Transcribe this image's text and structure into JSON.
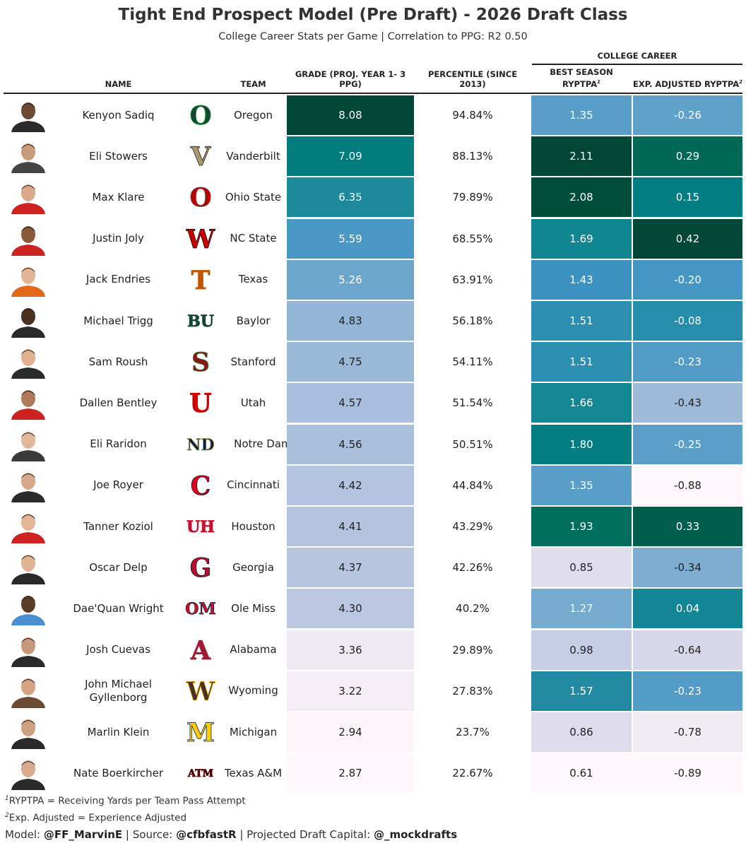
{
  "title": "Tight End Prospect Model (Pre Draft) - 2026 Draft Class",
  "subtitle": "College Career Stats per Game | Correlation to PPG: R2 0.50",
  "spanner": "COLLEGE CAREER",
  "headers": {
    "name": "NAME",
    "team": "TEAM",
    "grade": "GRADE (PROJ. YEAR 1- 3 PPG)",
    "percentile": "PERCENTILE (SINCE 2013)",
    "best": "BEST SEASON RYPTPA",
    "best_sup": "1",
    "exp": "EXP. ADJUSTED RYPTPA",
    "exp_sup": "2"
  },
  "colors": {
    "scale": [
      "#fff7fb",
      "#ece7f2",
      "#d0d1e6",
      "#a6bddb",
      "#74a9cf",
      "#3690c0",
      "#1c8a9a",
      "#02818a",
      "#016c59",
      "#014636"
    ]
  },
  "chart_data": {
    "type": "table",
    "columns": [
      "Name",
      "Team",
      "Grade (Proj. Year 1-3 PPG)",
      "Percentile (Since 2013)",
      "Best Season RYPTPA",
      "Exp. Adjusted RYPTPA"
    ],
    "rows": [
      {
        "name": "Kenyon Sadiq",
        "team": "Oregon",
        "grade": "8.08",
        "pct": "94.84%",
        "best": "1.35",
        "exp": "-0.26"
      },
      {
        "name": "Eli Stowers",
        "team": "Vanderbilt",
        "grade": "7.09",
        "pct": "88.13%",
        "best": "2.11",
        "exp": "0.29"
      },
      {
        "name": "Max Klare",
        "team": "Ohio State",
        "grade": "6.35",
        "pct": "79.89%",
        "best": "2.08",
        "exp": "0.15"
      },
      {
        "name": "Justin Joly",
        "team": "NC State",
        "grade": "5.59",
        "pct": "68.55%",
        "best": "1.69",
        "exp": "0.42"
      },
      {
        "name": "Jack Endries",
        "team": "Texas",
        "grade": "5.26",
        "pct": "63.91%",
        "best": "1.43",
        "exp": "-0.20"
      },
      {
        "name": "Michael Trigg",
        "team": "Baylor",
        "grade": "4.83",
        "pct": "56.18%",
        "best": "1.51",
        "exp": "-0.08"
      },
      {
        "name": "Sam Roush",
        "team": "Stanford",
        "grade": "4.75",
        "pct": "54.11%",
        "best": "1.51",
        "exp": "-0.23"
      },
      {
        "name": "Dallen Bentley",
        "team": "Utah",
        "grade": "4.57",
        "pct": "51.54%",
        "best": "1.66",
        "exp": "-0.43"
      },
      {
        "name": "Eli Raridon",
        "team": "Notre Dame",
        "grade": "4.56",
        "pct": "50.51%",
        "best": "1.80",
        "exp": "-0.25"
      },
      {
        "name": "Joe Royer",
        "team": "Cincinnati",
        "grade": "4.42",
        "pct": "44.84%",
        "best": "1.35",
        "exp": "-0.88"
      },
      {
        "name": "Tanner Koziol",
        "team": "Houston",
        "grade": "4.41",
        "pct": "43.29%",
        "best": "1.93",
        "exp": "0.33"
      },
      {
        "name": "Oscar Delp",
        "team": "Georgia",
        "grade": "4.37",
        "pct": "42.26%",
        "best": "0.85",
        "exp": "-0.34"
      },
      {
        "name": "Dae'Quan Wright",
        "team": "Ole Miss",
        "grade": "4.30",
        "pct": "40.2%",
        "best": "1.27",
        "exp": "0.04"
      },
      {
        "name": "Josh Cuevas",
        "team": "Alabama",
        "grade": "3.36",
        "pct": "29.89%",
        "best": "0.98",
        "exp": "-0.64"
      },
      {
        "name": "John Michael Gyllenborg",
        "team": "Wyoming",
        "grade": "3.22",
        "pct": "27.83%",
        "best": "1.57",
        "exp": "-0.23"
      },
      {
        "name": "Marlin Klein",
        "team": "Michigan",
        "grade": "2.94",
        "pct": "23.7%",
        "best": "0.86",
        "exp": "-0.78"
      },
      {
        "name": "Nate Boerkircher",
        "team": "Texas A&M",
        "grade": "2.87",
        "pct": "22.67%",
        "best": "0.61",
        "exp": "-0.89"
      }
    ]
  },
  "footnotes": [
    {
      "sup": "1",
      "text": "RYPTPA = Receiving Yards per Team Pass Attempt"
    },
    {
      "sup": "2",
      "text": "Exp. Adjusted = Experience Adjusted"
    }
  ],
  "credits": {
    "model_label": "Model: ",
    "model_handle": "@FF_MarvinE",
    "source_label": " | Source: ",
    "source_handle": "@cfbfastR",
    "capital_label": " | Projected Draft Capital: ",
    "capital_handle": "@_mockdrafts"
  },
  "logos": {
    "Oregon": {
      "icon": "oregon-o-logo",
      "glyph": "O",
      "color": "#154733",
      "accent": "#2dae46"
    },
    "Vanderbilt": {
      "icon": "vanderbilt-v-logo",
      "glyph": "V",
      "color": "#a8996e",
      "accent": "#1c1c1c"
    },
    "Ohio State": {
      "icon": "ohio-state-logo",
      "glyph": "O",
      "color": "#bb0000",
      "accent": "#666666"
    },
    "NC State": {
      "icon": "nc-state-wolf-logo",
      "glyph": "W",
      "color": "#cc0000",
      "accent": "#111111"
    },
    "Texas": {
      "icon": "texas-longhorn-logo",
      "glyph": "T",
      "color": "#bf5700",
      "accent": "#bf5700"
    },
    "Baylor": {
      "icon": "baylor-bu-logo",
      "glyph": "BU",
      "color": "#154734",
      "accent": "#154734"
    },
    "Stanford": {
      "icon": "stanford-s-logo",
      "glyph": "S",
      "color": "#8c1515",
      "accent": "#2e7d32"
    },
    "Utah": {
      "icon": "utah-u-logo",
      "glyph": "U",
      "color": "#cc0000",
      "accent": "#cc0000"
    },
    "Notre Dame": {
      "icon": "notre-dame-nd-logo",
      "glyph": "ND",
      "color": "#0c2340",
      "accent": "#ae9142"
    },
    "Cincinnati": {
      "icon": "cincinnati-c-logo",
      "glyph": "C",
      "color": "#e00122",
      "accent": "#111111"
    },
    "Houston": {
      "icon": "houston-uh-logo",
      "glyph": "UH",
      "color": "#c8102e",
      "accent": "#c8102e"
    },
    "Georgia": {
      "icon": "georgia-g-logo",
      "glyph": "G",
      "color": "#ba0c2f",
      "accent": "#111111"
    },
    "Ole Miss": {
      "icon": "ole-miss-script-logo",
      "glyph": "OM",
      "color": "#ce1126",
      "accent": "#14213d"
    },
    "Alabama": {
      "icon": "alabama-a-logo",
      "glyph": "A",
      "color": "#9e1b32",
      "accent": "#9e1b32"
    },
    "Wyoming": {
      "icon": "wyoming-cowboy-logo",
      "glyph": "W",
      "color": "#492f24",
      "accent": "#ffc425"
    },
    "Michigan": {
      "icon": "michigan-m-logo",
      "glyph": "M",
      "color": "#ffcb05",
      "accent": "#00274c"
    },
    "Texas A&M": {
      "icon": "texas-am-logo",
      "glyph": "ATM",
      "color": "#500000",
      "accent": "#500000"
    }
  }
}
